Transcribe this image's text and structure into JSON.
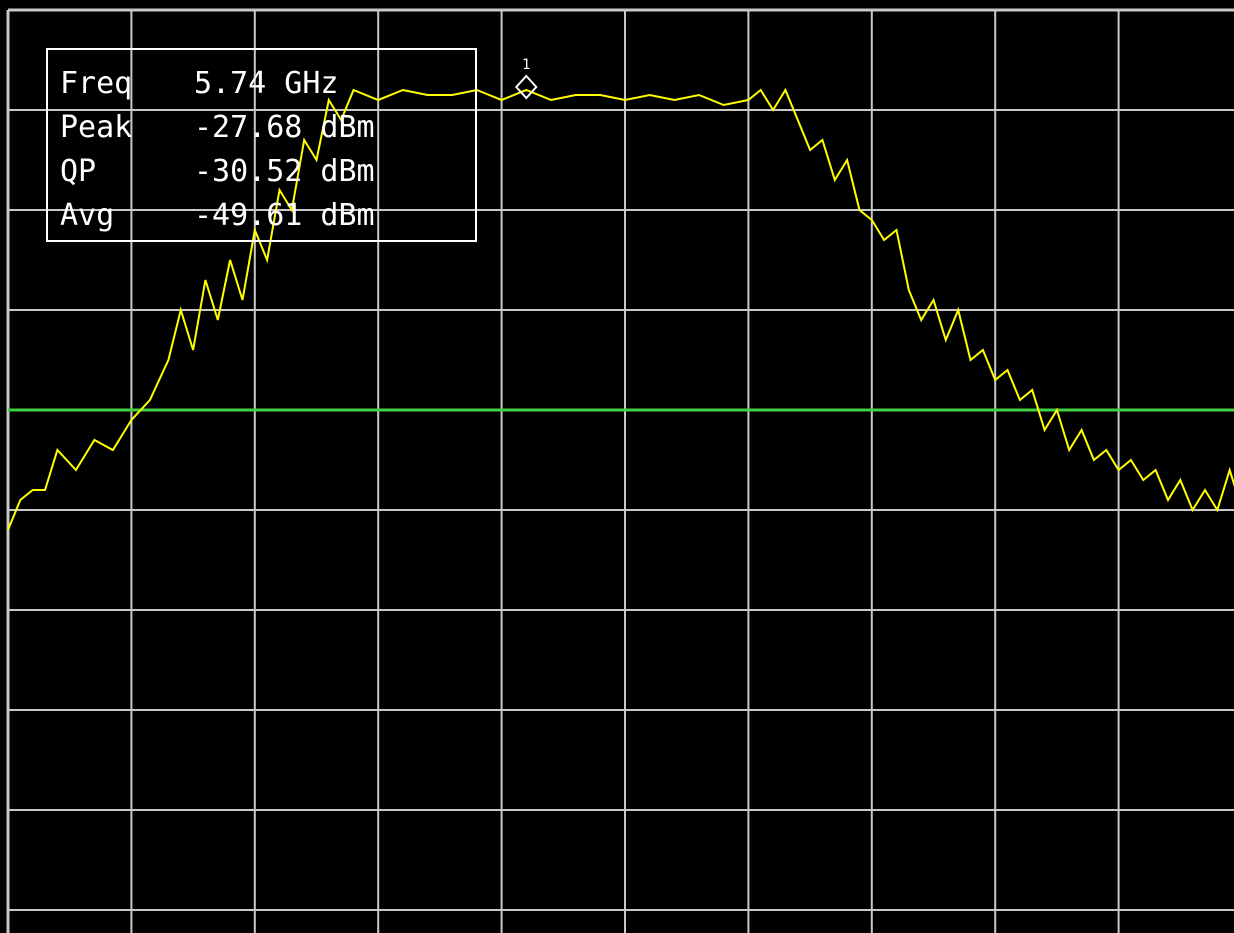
{
  "marker_readout": {
    "rows": [
      {
        "label": "Freq",
        "value": "5.74 GHz"
      },
      {
        "label": "Peak",
        "value": "-27.68 dBm"
      },
      {
        "label": "QP",
        "value": "-30.52 dBm"
      },
      {
        "label": "Avg",
        "value": "-49.61 dBm"
      }
    ]
  },
  "marker": {
    "label": "1",
    "x_div": 4.2,
    "level_div": 0.8
  },
  "colors": {
    "background": "#000000",
    "grid": "#c8c8c8",
    "trace": "#ffff00",
    "limit_line": "#40d040",
    "text": "#ffffff"
  },
  "chart_data": {
    "type": "line",
    "title": "",
    "xlabel": "",
    "ylabel": "",
    "grid": true,
    "divisions": {
      "x": 10,
      "y": 10
    },
    "x_unit": "division",
    "y_unit": "division below top graticule",
    "xlim": [
      0,
      10
    ],
    "ylim_divisions_from_top": [
      0,
      10
    ],
    "series": [
      {
        "role": "trace",
        "x": [
          0,
          0.1,
          0.2,
          0.3,
          0.4,
          0.55,
          0.7,
          0.85,
          1.0,
          1.15,
          1.3,
          1.4,
          1.5,
          1.6,
          1.7,
          1.8,
          1.9,
          2.0,
          2.1,
          2.2,
          2.3,
          2.4,
          2.5,
          2.6,
          2.7,
          2.8,
          3.0,
          3.2,
          3.4,
          3.6,
          3.8,
          4.0,
          4.2,
          4.4,
          4.6,
          4.8,
          5.0,
          5.2,
          5.4,
          5.6,
          5.8,
          6.0,
          6.1,
          6.2,
          6.3,
          6.4,
          6.5,
          6.6,
          6.7,
          6.8,
          6.9,
          7.0,
          7.1,
          7.2,
          7.3,
          7.4,
          7.5,
          7.6,
          7.7,
          7.8,
          7.9,
          8.0,
          8.1,
          8.2,
          8.3,
          8.4,
          8.5,
          8.6,
          8.7,
          8.8,
          8.9,
          9.0,
          9.1,
          9.2,
          9.3,
          9.4,
          9.5,
          9.6,
          9.7,
          9.8,
          9.9,
          10.0
        ],
        "y": [
          5.2,
          4.9,
          4.8,
          4.8,
          4.4,
          4.6,
          4.3,
          4.4,
          4.1,
          3.9,
          3.5,
          3.0,
          3.4,
          2.7,
          3.1,
          2.5,
          2.9,
          2.2,
          2.5,
          1.8,
          2.0,
          1.3,
          1.5,
          0.9,
          1.1,
          0.8,
          0.9,
          0.8,
          0.85,
          0.85,
          0.8,
          0.9,
          0.8,
          0.9,
          0.85,
          0.85,
          0.9,
          0.85,
          0.9,
          0.85,
          0.95,
          0.9,
          0.8,
          1.0,
          0.8,
          1.1,
          1.4,
          1.3,
          1.7,
          1.5,
          2.0,
          2.1,
          2.3,
          2.2,
          2.8,
          3.1,
          2.9,
          3.3,
          3.0,
          3.5,
          3.4,
          3.7,
          3.6,
          3.9,
          3.8,
          4.2,
          4.0,
          4.4,
          4.2,
          4.5,
          4.4,
          4.6,
          4.5,
          4.7,
          4.6,
          4.9,
          4.7,
          5.0,
          4.8,
          5.0,
          4.6,
          5.0
        ]
      },
      {
        "role": "limit_line",
        "x": [
          0,
          10
        ],
        "y": [
          4,
          4
        ]
      }
    ]
  }
}
